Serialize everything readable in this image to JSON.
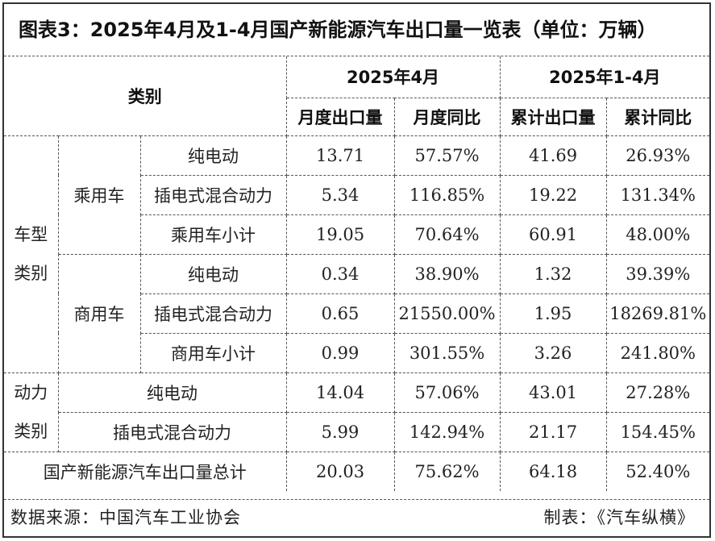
{
  "title": "图表3：2025年4月及1-4月国产新能源汽车出口量一览表（单位：万辆）",
  "header": {
    "category": "类别",
    "group_month": "2025年4月",
    "group_ytd": "2025年1-4月",
    "col_month_export": "月度出口量",
    "col_month_yoy": "月度同比",
    "col_ytd_export": "累计出口量",
    "col_ytd_yoy": "累计同比"
  },
  "vehicle_type": {
    "label_line1": "车型",
    "label_line2": "类别",
    "passenger": {
      "label": "乘用车",
      "rows": [
        {
          "name": "纯电动",
          "month_export": "13.71",
          "month_yoy": "57.57%",
          "ytd_export": "41.69",
          "ytd_yoy": "26.93%"
        },
        {
          "name": "插电式混合动力",
          "month_export": "5.34",
          "month_yoy": "116.85%",
          "ytd_export": "19.22",
          "ytd_yoy": "131.34%"
        },
        {
          "name": "乘用车小计",
          "month_export": "19.05",
          "month_yoy": "70.64%",
          "ytd_export": "60.91",
          "ytd_yoy": "48.00%"
        }
      ]
    },
    "commercial": {
      "label": "商用车",
      "rows": [
        {
          "name": "纯电动",
          "month_export": "0.34",
          "month_yoy": "38.90%",
          "ytd_export": "1.32",
          "ytd_yoy": "39.39%"
        },
        {
          "name": "插电式混合动力",
          "month_export": "0.65",
          "month_yoy": "21550.00%",
          "ytd_export": "1.95",
          "ytd_yoy": "18269.81%"
        },
        {
          "name": "商用车小计",
          "month_export": "0.99",
          "month_yoy": "301.55%",
          "ytd_export": "3.26",
          "ytd_yoy": "241.80%"
        }
      ]
    }
  },
  "power_type": {
    "label_line1": "动力",
    "label_line2": "类别",
    "rows": [
      {
        "name": "纯电动",
        "month_export": "14.04",
        "month_yoy": "57.06%",
        "ytd_export": "43.01",
        "ytd_yoy": "27.28%"
      },
      {
        "name": "插电式混合动力",
        "month_export": "5.99",
        "month_yoy": "142.94%",
        "ytd_export": "21.17",
        "ytd_yoy": "154.45%"
      }
    ]
  },
  "total": {
    "name": "国产新能源汽车出口量总计",
    "month_export": "20.03",
    "month_yoy": "75.62%",
    "ytd_export": "64.18",
    "ytd_yoy": "52.40%"
  },
  "footer": {
    "source": "数据来源：中国汽车工业协会",
    "made_by": "制表：《汽车纵横》"
  }
}
